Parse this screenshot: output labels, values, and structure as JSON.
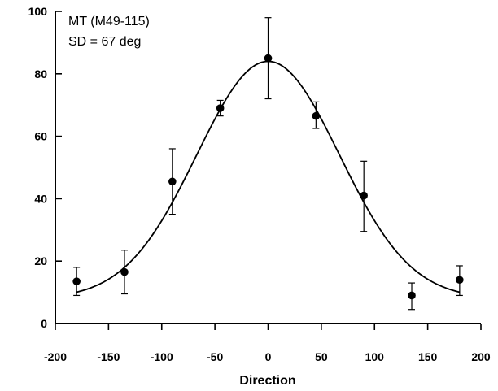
{
  "chart_data": {
    "type": "scatter",
    "title": "",
    "annotations": [
      "MT  (M49-115)",
      "SD = 67 deg"
    ],
    "xlabel": "Direction",
    "ylabel": "",
    "xlim": [
      -200,
      200
    ],
    "ylim": [
      0,
      100
    ],
    "xticks": [
      -200,
      -150,
      -100,
      -50,
      0,
      50,
      100,
      150,
      200
    ],
    "yticks": [
      0,
      20,
      40,
      60,
      80,
      100
    ],
    "grid": false,
    "legend": "none",
    "series": [
      {
        "kind": "points-with-error-bars",
        "x": [
          -180,
          -135,
          -90,
          -45,
          0,
          45,
          90,
          135,
          180
        ],
        "y": [
          13.5,
          16.5,
          45.5,
          69,
          85,
          66.5,
          41,
          9,
          14
        ],
        "err_low": [
          9,
          9.5,
          35,
          66.5,
          72,
          62.5,
          29.5,
          4.5,
          9
        ],
        "err_high": [
          18,
          23.5,
          56,
          71.5,
          98,
          71,
          52,
          13,
          18.5
        ],
        "color": "#000000"
      },
      {
        "kind": "fit-curve",
        "model": "gaussian",
        "baseline": 8,
        "amplitude": 76,
        "center": 0,
        "sd": 67,
        "x_range": [
          -180,
          180
        ],
        "color": "#000000"
      }
    ]
  }
}
